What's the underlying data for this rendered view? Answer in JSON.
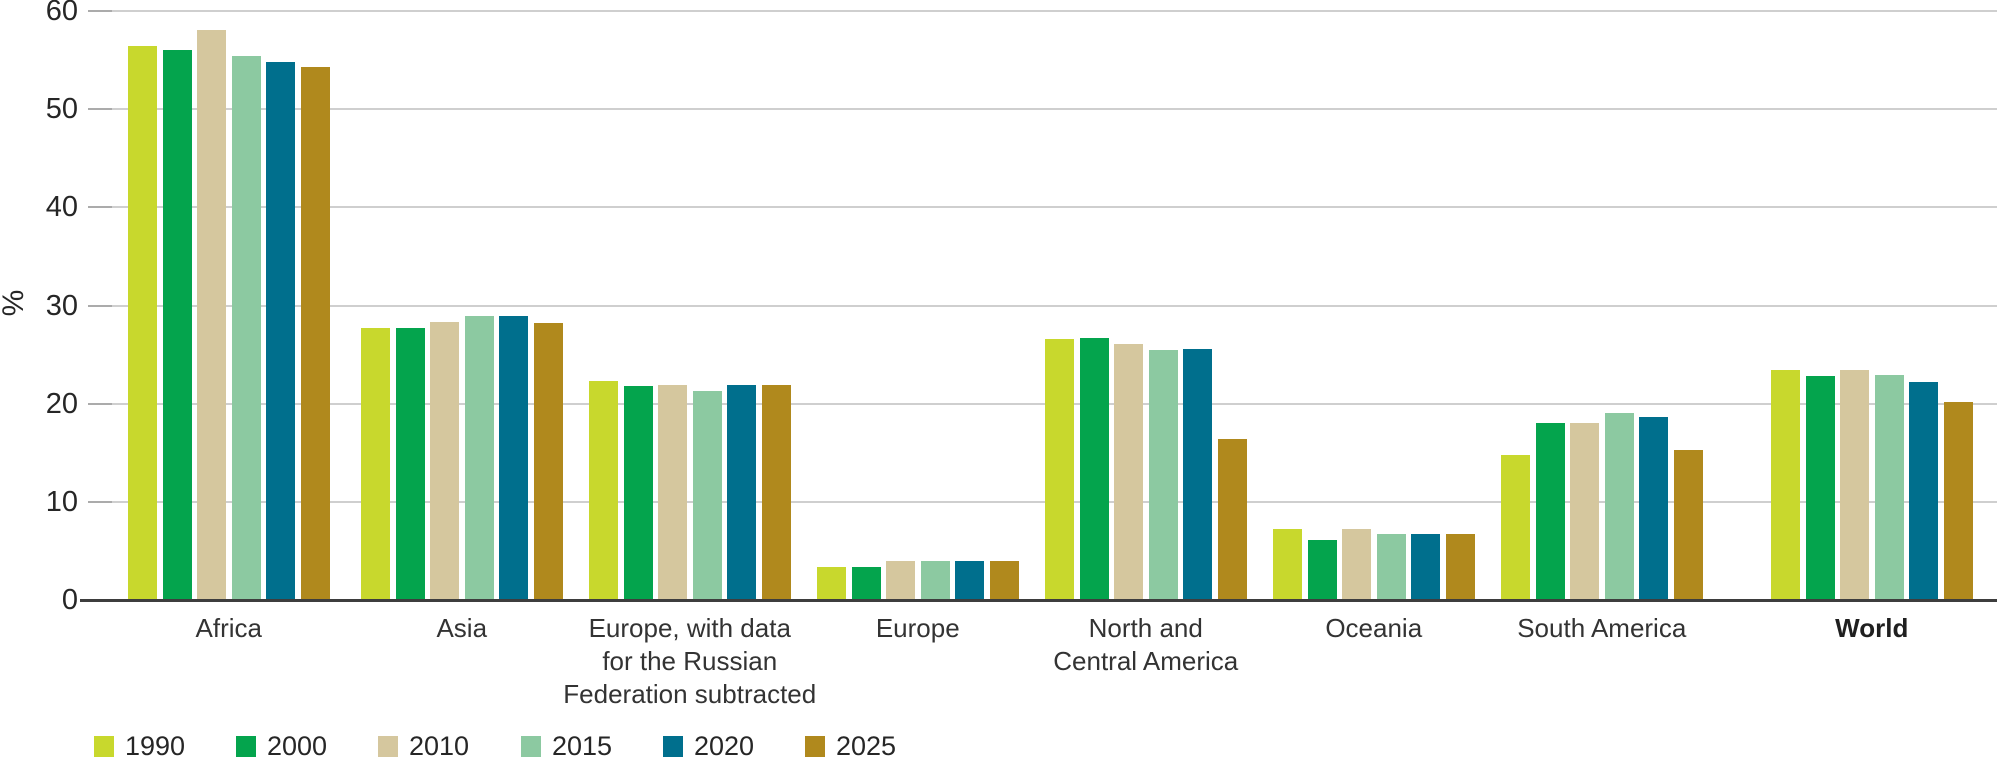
{
  "chart_data": {
    "type": "bar",
    "title": "",
    "xlabel": "",
    "ylabel": "%",
    "ylim": [
      0,
      60
    ],
    "yticks": [
      60,
      50,
      40,
      30,
      20,
      10,
      0
    ],
    "grid": true,
    "legend_position": "bottom-left",
    "categories": [
      {
        "label": "Africa",
        "lines": [
          "Africa"
        ],
        "emphasis": false
      },
      {
        "label": "Asia",
        "lines": [
          "Asia"
        ],
        "emphasis": false
      },
      {
        "label": "Europe, with data for the Russian Federation subtracted",
        "lines": [
          "Europe, with data",
          "for the Russian",
          "Federation subtracted"
        ],
        "emphasis": false
      },
      {
        "label": "Europe",
        "lines": [
          "Europe"
        ],
        "emphasis": false
      },
      {
        "label": "North and Central America",
        "lines": [
          "North and",
          "Central America"
        ],
        "emphasis": false
      },
      {
        "label": "Oceania",
        "lines": [
          "Oceania"
        ],
        "emphasis": false
      },
      {
        "label": "South America",
        "lines": [
          "South America"
        ],
        "emphasis": false
      },
      {
        "label": "World",
        "lines": [
          "World"
        ],
        "emphasis": true
      }
    ],
    "series": [
      {
        "name": "1990",
        "color": "#c8d82d",
        "values": [
          56.4,
          27.7,
          22.3,
          3.4,
          26.6,
          7.2,
          14.8,
          23.4
        ]
      },
      {
        "name": "2000",
        "color": "#04a44d",
        "values": [
          56.0,
          27.7,
          21.8,
          3.4,
          26.7,
          6.1,
          18.0,
          22.8
        ]
      },
      {
        "name": "2010",
        "color": "#d5c79e",
        "values": [
          58.1,
          28.3,
          21.9,
          4.0,
          26.1,
          7.2,
          18.0,
          23.4
        ]
      },
      {
        "name": "2015",
        "color": "#8cc9a1",
        "values": [
          55.4,
          28.9,
          21.3,
          4.0,
          25.5,
          6.7,
          19.1,
          22.9
        ]
      },
      {
        "name": "2020",
        "color": "#006f8d",
        "values": [
          54.8,
          28.9,
          21.9,
          4.0,
          25.6,
          6.7,
          18.6,
          22.2
        ]
      },
      {
        "name": "2025",
        "color": "#b0891d",
        "values": [
          54.3,
          28.2,
          21.9,
          4.0,
          16.4,
          6.7,
          15.3,
          20.2
        ]
      }
    ]
  },
  "colors": {
    "axis_line": "#3d3d3d",
    "gridline": "#cfcfcf",
    "text": "#262626"
  }
}
